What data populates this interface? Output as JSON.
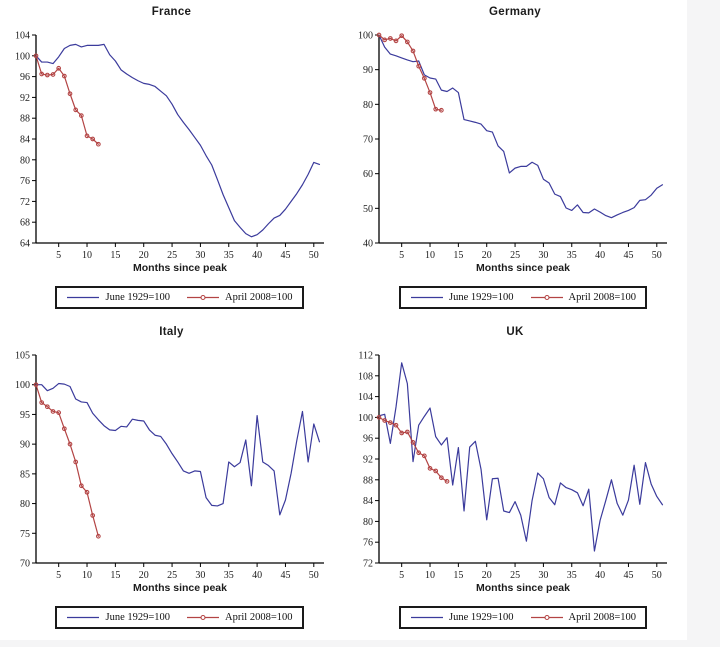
{
  "page": {
    "background": "#ffffff",
    "gutter_color": "#f5f5f6",
    "axis_color": "#000000",
    "text_color": "#1c1c1c"
  },
  "xlabel": "Months since peak",
  "legend_labels": {
    "series_1929": "June 1929=100",
    "series_2008": "April 2008=100"
  },
  "chart_data": [
    {
      "type": "line",
      "title": "France",
      "xlabel": "Months since peak",
      "xlim": [
        1,
        51.8
      ],
      "ylim": [
        64,
        104
      ],
      "yticks": [
        64,
        68,
        72,
        76,
        80,
        84,
        88,
        92,
        96,
        100,
        104
      ],
      "xticks": [
        5,
        10,
        15,
        20,
        25,
        30,
        35,
        40,
        45,
        50
      ],
      "grid": "off",
      "legend_position": "bottom",
      "series": [
        {
          "name": "June 1929=100",
          "color": "#3b3b9c",
          "marker": "none",
          "x_start": 1,
          "values": [
            100,
            98.8,
            98.8,
            98.5,
            99.8,
            101.4,
            102,
            102.2,
            101.7,
            102,
            102,
            102,
            102.2,
            100.2,
            99,
            97.3,
            96.5,
            95.8,
            95.2,
            94.7,
            94.5,
            94.1,
            93.2,
            92.3,
            90.7,
            88.7,
            87.2,
            85.8,
            84.3,
            82.8,
            80.8,
            79,
            76.2,
            73.3,
            70.8,
            68.3,
            67,
            65.8,
            65.2,
            65.6,
            66.5,
            67.7,
            68.8,
            69.3,
            70.5,
            72,
            73.5,
            75.2,
            77.2,
            79.5,
            79.1
          ]
        },
        {
          "name": "April 2008=100",
          "color": "#b34444",
          "marker": "circle",
          "x_start": 1,
          "values": [
            100,
            96.5,
            96.3,
            96.4,
            97.6,
            96.1,
            92.7,
            89.6,
            88.5,
            84.6,
            84,
            83
          ]
        }
      ]
    },
    {
      "type": "line",
      "title": "Germany",
      "xlabel": "Months since peak",
      "xlim": [
        1,
        51.8
      ],
      "ylim": [
        40,
        100
      ],
      "yticks": [
        40,
        50,
        60,
        70,
        80,
        90,
        100
      ],
      "xticks": [
        5,
        10,
        15,
        20,
        25,
        30,
        35,
        40,
        45,
        50
      ],
      "grid": "off",
      "legend_position": "bottom",
      "series": [
        {
          "name": "June 1929=100",
          "color": "#3b3b9c",
          "marker": "none",
          "x_start": 1,
          "values": [
            100,
            96.5,
            94.5,
            94,
            93.4,
            92.8,
            92.3,
            92.5,
            88.5,
            87.6,
            87.3,
            84.1,
            83.7,
            84.7,
            83.4,
            75.6,
            75.2,
            74.8,
            74.3,
            72.4,
            72,
            68,
            66.4,
            60.2,
            61.6,
            62.1,
            62.1,
            63.3,
            62.4,
            58.4,
            57.3,
            54.1,
            53.4,
            50.1,
            49.4,
            51,
            48.8,
            48.7,
            49.8,
            48.9,
            47.9,
            47.3,
            48.1,
            48.8,
            49.4,
            50.2,
            52.3,
            52.5,
            53.8,
            55.8,
            56.8
          ]
        },
        {
          "name": "April 2008=100",
          "color": "#b34444",
          "marker": "circle",
          "x_start": 1,
          "values": [
            100,
            98.6,
            99,
            98.3,
            99.8,
            98,
            95.4,
            91,
            87.5,
            83.4,
            78.6,
            78.3
          ]
        }
      ]
    },
    {
      "type": "line",
      "title": "Italy",
      "xlabel": "Months since peak",
      "xlim": [
        1,
        51.8
      ],
      "ylim": [
        70,
        105
      ],
      "yticks": [
        70,
        75,
        80,
        85,
        90,
        95,
        100,
        105
      ],
      "xticks": [
        5,
        10,
        15,
        20,
        25,
        30,
        35,
        40,
        45,
        50
      ],
      "grid": "off",
      "legend_position": "bottom",
      "series": [
        {
          "name": "June 1929=100",
          "color": "#3b3b9c",
          "marker": "none",
          "x_start": 1,
          "values": [
            100,
            100,
            99,
            99.4,
            100.2,
            100.1,
            99.7,
            97.6,
            97.1,
            97,
            95.2,
            94.1,
            93.1,
            92.4,
            92.3,
            93,
            92.9,
            94.2,
            94,
            93.9,
            92.4,
            91.5,
            91.3,
            90,
            88.4,
            87,
            85.5,
            85.1,
            85.5,
            85.4,
            81,
            79.7,
            79.6,
            80,
            87,
            86.2,
            86.9,
            90.7,
            83,
            94.8,
            87,
            86.4,
            85.5,
            78.1,
            80.6,
            85.1,
            90.6,
            95.5,
            87,
            93.4,
            90.4
          ]
        },
        {
          "name": "April 2008=100",
          "color": "#b34444",
          "marker": "circle",
          "x_start": 1,
          "values": [
            100,
            97,
            96.3,
            95.5,
            95.3,
            92.6,
            90,
            87,
            83,
            81.9,
            78,
            74.5
          ]
        }
      ]
    },
    {
      "type": "line",
      "title": "UK",
      "xlabel": "Months since peak",
      "xlim": [
        1,
        51.8
      ],
      "ylim": [
        72,
        112
      ],
      "yticks": [
        72,
        76,
        80,
        84,
        88,
        92,
        96,
        100,
        104,
        108,
        112
      ],
      "xticks": [
        5,
        10,
        15,
        20,
        25,
        30,
        35,
        40,
        45,
        50
      ],
      "grid": "off",
      "legend_position": "bottom",
      "series": [
        {
          "name": "June 1929=100",
          "color": "#3b3b9c",
          "marker": "none",
          "x_start": 1,
          "values": [
            100.3,
            100.6,
            95,
            102,
            110.5,
            106.5,
            91.5,
            98.5,
            100.2,
            101.8,
            96.3,
            94.7,
            96.1,
            87,
            94.2,
            82,
            94.3,
            95.4,
            90,
            80.3,
            88.2,
            88.3,
            82,
            81.7,
            83.8,
            81.2,
            76.2,
            84,
            89.3,
            88.2,
            84.6,
            83.2,
            87.4,
            86.5,
            86.1,
            85.5,
            83,
            86.2,
            74.3,
            80.2,
            84,
            88,
            83.5,
            81.2,
            84.1,
            90.8,
            83.3,
            91.3,
            87.2,
            84.8,
            83.2
          ]
        },
        {
          "name": "April 2008=100",
          "color": "#b34444",
          "marker": "circle",
          "x_start": 1,
          "values": [
            100,
            99.4,
            99,
            98.5,
            97,
            97.2,
            95.2,
            93.2,
            92.6,
            90.2,
            89.7,
            88.4,
            87.7
          ]
        }
      ]
    }
  ]
}
